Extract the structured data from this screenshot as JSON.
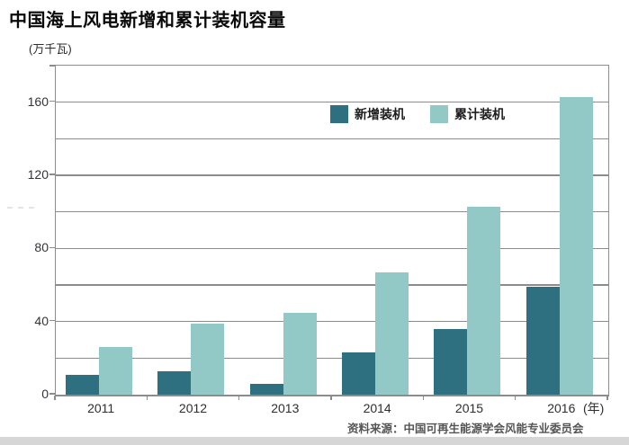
{
  "source": "资料来源：中国可再生能源学会风能专业委员会",
  "colors": {
    "new_installed": "#2e6f80",
    "cumulative_installed": "#92c8c6",
    "gridline": "#8c8c8c",
    "page_edge": "#d6d6d6"
  },
  "chart_data": {
    "type": "bar",
    "title": "中国海上风电新增和累计装机容量",
    "unit_label": "(万千瓦)",
    "x_axis_unit": "(年)",
    "categories": [
      "2011",
      "2012",
      "2013",
      "2014",
      "2015",
      "2016"
    ],
    "series": [
      {
        "name": "新增装机",
        "color": "#2e6f80",
        "values": [
          11,
          13,
          6,
          23,
          36,
          59
        ]
      },
      {
        "name": "累计装机",
        "color": "#92c8c6",
        "values": [
          26,
          39,
          45,
          67,
          103,
          163
        ]
      }
    ],
    "ylim": [
      0,
      180
    ],
    "y_tick_labels": [
      0,
      40,
      80,
      120,
      160
    ],
    "gridline_step": 20,
    "grid": true,
    "legend_position": "top-center-inside"
  }
}
